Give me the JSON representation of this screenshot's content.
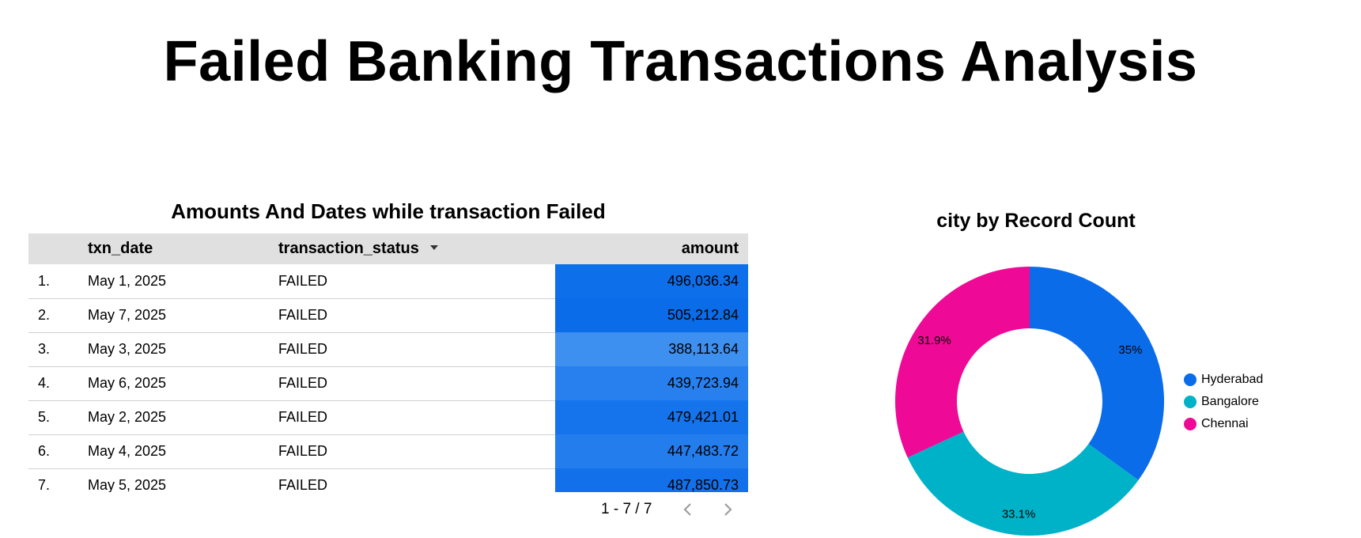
{
  "title": "Failed Banking Transactions Analysis",
  "table": {
    "title": "Amounts And Dates while transaction Failed",
    "headers": {
      "txn_date": "txn_date",
      "transaction_status": "transaction_status",
      "amount": "amount"
    },
    "sort_icon": "caret-down-icon",
    "rows": [
      {
        "num": "1.",
        "txn_date": "May 1, 2025",
        "transaction_status": "FAILED",
        "amount": "496,036.34",
        "amount_value": 496036.34
      },
      {
        "num": "2.",
        "txn_date": "May 7, 2025",
        "transaction_status": "FAILED",
        "amount": "505,212.84",
        "amount_value": 505212.84
      },
      {
        "num": "3.",
        "txn_date": "May 3, 2025",
        "transaction_status": "FAILED",
        "amount": "388,113.64",
        "amount_value": 388113.64
      },
      {
        "num": "4.",
        "txn_date": "May 6, 2025",
        "transaction_status": "FAILED",
        "amount": "439,723.94",
        "amount_value": 439723.94
      },
      {
        "num": "5.",
        "txn_date": "May 2, 2025",
        "transaction_status": "FAILED",
        "amount": "479,421.01",
        "amount_value": 479421.01
      },
      {
        "num": "6.",
        "txn_date": "May 4, 2025",
        "transaction_status": "FAILED",
        "amount": "447,483.72",
        "amount_value": 447483.72
      },
      {
        "num": "7.",
        "txn_date": "May 5, 2025",
        "transaction_status": "FAILED",
        "amount": "487,850.73",
        "amount_value": 487850.73
      }
    ],
    "pagination": {
      "text": "1 - 7 / 7",
      "prev_icon": "chevron-left-icon",
      "next_icon": "chevron-right-icon"
    },
    "heatmap_colors": {
      "low": "#3d8ff0",
      "high": "#0a6ce9"
    }
  },
  "chart_data": {
    "type": "pie",
    "title": "city by Record Count",
    "donut": true,
    "categories": [
      "Hyderabad",
      "Bangalore",
      "Chennai"
    ],
    "values": [
      35,
      33.1,
      31.9
    ],
    "labels": [
      "35%",
      "33.1%",
      "31.9%"
    ],
    "colors": [
      "#0a6ce9",
      "#00b2c8",
      "#ee0a96"
    ],
    "legend_position": "right"
  }
}
